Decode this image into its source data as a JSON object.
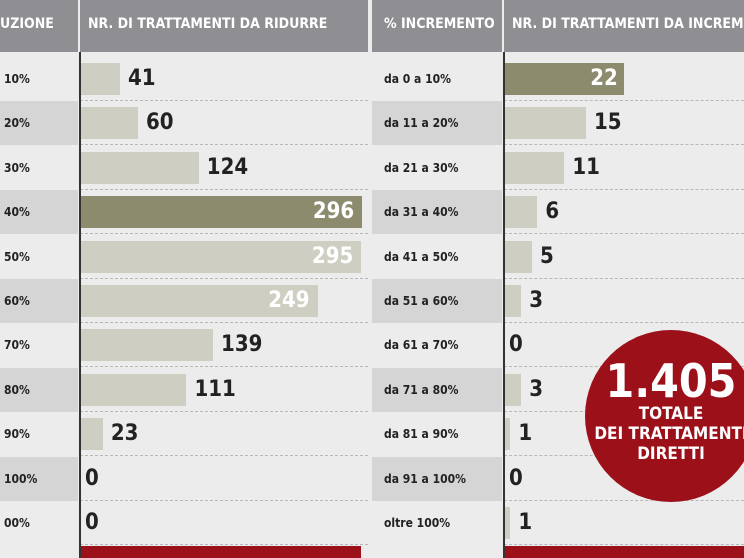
{
  "left": {
    "header_label": "UZIONE",
    "header_bars": "NR. DI TRATTAMENTI DA RIDURRE",
    "rows": [
      {
        "label": "10%",
        "value": 41
      },
      {
        "label": "20%",
        "value": 60
      },
      {
        "label": "30%",
        "value": 124
      },
      {
        "label": "40%",
        "value": 296,
        "highlight": true
      },
      {
        "label": "50%",
        "value": 295
      },
      {
        "label": "60%",
        "value": 249
      },
      {
        "label": "70%",
        "value": 139
      },
      {
        "label": "80%",
        "value": 111
      },
      {
        "label": "90%",
        "value": 23
      },
      {
        "label": "100%",
        "value": 0
      },
      {
        "label": "00%",
        "value": 0
      }
    ]
  },
  "right": {
    "header_label": "% INCREMENTO",
    "header_bars": "NR. DI TRATTAMENTI DA INCREMENTARE",
    "rows": [
      {
        "label": "da 0 a 10%",
        "value": 22,
        "highlight": true
      },
      {
        "label": "da 11 a 20%",
        "value": 15
      },
      {
        "label": "da 21 a 30%",
        "value": 11
      },
      {
        "label": "da 31 a 40%",
        "value": 6
      },
      {
        "label": "da 41 a 50%",
        "value": 5
      },
      {
        "label": "da 51 a 60%",
        "value": 3
      },
      {
        "label": "da 61 a 70%",
        "value": 0
      },
      {
        "label": "da 71 a 80%",
        "value": 3
      },
      {
        "label": "da 81 a 90%",
        "value": 1
      },
      {
        "label": "da 91 a 100%",
        "value": 0
      },
      {
        "label": "oltre 100%",
        "value": 1
      }
    ]
  },
  "circle": {
    "number": "1.405",
    "line1": "TOTALE",
    "line2": "DEI TRATTAMENTI",
    "line3": "DIRETTI"
  },
  "colors": {
    "header": "#8f8e93",
    "bar": "#cfcec2",
    "bar_highlight": "#8c8b6e",
    "accent": "#9b1019"
  },
  "chart_data": {
    "type": "bar",
    "orientation": "horizontal",
    "charts": [
      {
        "title": "NR. DI TRATTAMENTI DA RIDURRE",
        "categories": [
          "10%",
          "20%",
          "30%",
          "40%",
          "50%",
          "60%",
          "70%",
          "80%",
          "90%",
          "100%",
          "00%"
        ],
        "values": [
          41,
          60,
          124,
          296,
          295,
          249,
          139,
          111,
          23,
          0,
          0
        ]
      },
      {
        "title": "NR. DI TRATTAMENTI DA INCREMENTARE",
        "categories": [
          "da 0 a 10%",
          "da 11 a 20%",
          "da 21 a 30%",
          "da 31 a 40%",
          "da 41 a 50%",
          "da 51 a 60%",
          "da 61 a 70%",
          "da 71 a 80%",
          "da 81 a 90%",
          "da 91 a 100%",
          "oltre 100%"
        ],
        "values": [
          22,
          15,
          11,
          6,
          5,
          3,
          0,
          3,
          1,
          0,
          1
        ]
      }
    ]
  }
}
